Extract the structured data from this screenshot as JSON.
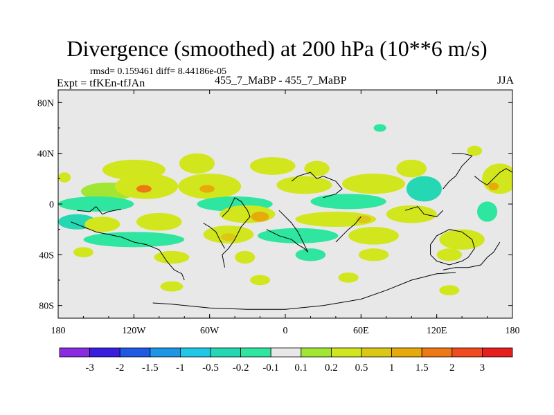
{
  "title": "Divergence (smoothed) at 200 hPa (10**6 m/s)",
  "stats_text": "rmsd= 0.159461 diff= 8.44186e-05",
  "expt_label": "Expt = tfKEn-tfJAn",
  "center_label": "455_7_MaBP - 455_7_MaBP",
  "season_label": "JJA",
  "chart_data": {
    "type": "heatmap",
    "title": "Divergence (smoothed) at 200 hPa (10**6 m/s)",
    "xlim": [
      -180,
      180
    ],
    "ylim": [
      -90,
      90
    ],
    "x_ticks": [
      {
        "value": -180,
        "label": "180"
      },
      {
        "value": -120,
        "label": "120W"
      },
      {
        "value": -60,
        "label": "60W"
      },
      {
        "value": 0,
        "label": "0"
      },
      {
        "value": 60,
        "label": "60E"
      },
      {
        "value": 120,
        "label": "120E"
      },
      {
        "value": 180,
        "label": "180"
      }
    ],
    "y_ticks": [
      {
        "value": 80,
        "label": "80N"
      },
      {
        "value": 40,
        "label": "40N"
      },
      {
        "value": 0,
        "label": "0"
      },
      {
        "value": -40,
        "label": "40S"
      },
      {
        "value": -80,
        "label": "80S"
      }
    ],
    "colorbar": {
      "colors": [
        "#8a2be2",
        "#3a1ee0",
        "#1e5ae6",
        "#1e96e6",
        "#1ec8e6",
        "#26d7b4",
        "#2ee6a0",
        "#e8e8e8",
        "#a0e632",
        "#d2e61e",
        "#dcc814",
        "#e6aa0a",
        "#ee7814",
        "#f04a1e",
        "#e61e1e"
      ],
      "labels": [
        "-3",
        "-2",
        "-1.5",
        "-1",
        "-0.5",
        "-0.2",
        "-0.1",
        "0.1",
        "0.2",
        "0.5",
        "1",
        "1.5",
        "2",
        "3"
      ]
    },
    "regions": [
      {
        "lon": -175,
        "lat": 21,
        "rx": 5,
        "ry": 4,
        "level": 9
      },
      {
        "lon": -168,
        "lat": 8,
        "rx": 10,
        "ry": 6,
        "level": 7
      },
      {
        "lon": -140,
        "lat": 10,
        "rx": 22,
        "ry": 7,
        "level": 8
      },
      {
        "lon": -110,
        "lat": 14,
        "rx": 25,
        "ry": 10,
        "level": 9
      },
      {
        "lon": -112,
        "lat": 12,
        "rx": 6,
        "ry": 3,
        "level": 12
      },
      {
        "lon": -60,
        "lat": 14,
        "rx": 25,
        "ry": 10,
        "level": 9
      },
      {
        "lon": -62,
        "lat": 12,
        "rx": 6,
        "ry": 3,
        "level": 11
      },
      {
        "lon": -120,
        "lat": 27,
        "rx": 25,
        "ry": 8,
        "level": 9
      },
      {
        "lon": -70,
        "lat": 32,
        "rx": 14,
        "ry": 8,
        "level": 9
      },
      {
        "lon": -10,
        "lat": 30,
        "rx": 18,
        "ry": 7,
        "level": 9
      },
      {
        "lon": 25,
        "lat": 28,
        "rx": 10,
        "ry": 6,
        "level": 9
      },
      {
        "lon": 15,
        "lat": 15,
        "rx": 22,
        "ry": 7,
        "level": 9
      },
      {
        "lon": 70,
        "lat": 16,
        "rx": 25,
        "ry": 8,
        "level": 9
      },
      {
        "lon": 100,
        "lat": 28,
        "rx": 12,
        "ry": 7,
        "level": 9
      },
      {
        "lon": 170,
        "lat": 20,
        "rx": 14,
        "ry": 12,
        "level": 9
      },
      {
        "lon": 165,
        "lat": 14,
        "rx": 4,
        "ry": 3,
        "level": 11
      },
      {
        "lon": -150,
        "lat": 0,
        "rx": 30,
        "ry": 6,
        "level": 6
      },
      {
        "lon": -40,
        "lat": 0,
        "rx": 30,
        "ry": 6,
        "level": 6
      },
      {
        "lon": 50,
        "lat": 2,
        "rx": 30,
        "ry": 6,
        "level": 6
      },
      {
        "lon": 110,
        "lat": 12,
        "rx": 14,
        "ry": 10,
        "level": 5
      },
      {
        "lon": -165,
        "lat": -14,
        "rx": 15,
        "ry": 6,
        "level": 5
      },
      {
        "lon": -145,
        "lat": -16,
        "rx": 14,
        "ry": 6,
        "level": 9
      },
      {
        "lon": -100,
        "lat": -14,
        "rx": 18,
        "ry": 7,
        "level": 9
      },
      {
        "lon": -30,
        "lat": -8,
        "rx": 22,
        "ry": 7,
        "level": 9
      },
      {
        "lon": -20,
        "lat": -10,
        "rx": 7,
        "ry": 4,
        "level": 11
      },
      {
        "lon": 40,
        "lat": -12,
        "rx": 32,
        "ry": 6,
        "level": 9
      },
      {
        "lon": 62,
        "lat": -12,
        "rx": 6,
        "ry": 3,
        "level": 10
      },
      {
        "lon": 100,
        "lat": -8,
        "rx": 20,
        "ry": 7,
        "level": 9
      },
      {
        "lon": -120,
        "lat": -28,
        "rx": 40,
        "ry": 6,
        "level": 6
      },
      {
        "lon": -45,
        "lat": -24,
        "rx": 20,
        "ry": 7,
        "level": 9
      },
      {
        "lon": -45,
        "lat": -26,
        "rx": 6,
        "ry": 3,
        "level": 10
      },
      {
        "lon": 10,
        "lat": -25,
        "rx": 32,
        "ry": 6,
        "level": 6
      },
      {
        "lon": 70,
        "lat": -25,
        "rx": 20,
        "ry": 7,
        "level": 9
      },
      {
        "lon": 140,
        "lat": -28,
        "rx": 18,
        "ry": 8,
        "level": 9
      },
      {
        "lon": 160,
        "lat": -6,
        "rx": 8,
        "ry": 8,
        "level": 6
      },
      {
        "lon": -160,
        "lat": -38,
        "rx": 8,
        "ry": 4,
        "level": 9
      },
      {
        "lon": -90,
        "lat": -42,
        "rx": 14,
        "ry": 5,
        "level": 9
      },
      {
        "lon": -32,
        "lat": -42,
        "rx": 8,
        "ry": 5,
        "level": 9
      },
      {
        "lon": 20,
        "lat": -40,
        "rx": 12,
        "ry": 5,
        "level": 6
      },
      {
        "lon": 70,
        "lat": -40,
        "rx": 12,
        "ry": 5,
        "level": 9
      },
      {
        "lon": 130,
        "lat": -40,
        "rx": 10,
        "ry": 5,
        "level": 9
      },
      {
        "lon": -90,
        "lat": -65,
        "rx": 9,
        "ry": 4,
        "level": 9
      },
      {
        "lon": -20,
        "lat": -60,
        "rx": 8,
        "ry": 4,
        "level": 9
      },
      {
        "lon": 50,
        "lat": -58,
        "rx": 8,
        "ry": 4,
        "level": 9
      },
      {
        "lon": 130,
        "lat": -68,
        "rx": 8,
        "ry": 4,
        "level": 9
      },
      {
        "lon": 75,
        "lat": 60,
        "rx": 5,
        "ry": 3,
        "level": 6
      },
      {
        "lon": 150,
        "lat": 42,
        "rx": 6,
        "ry": 4,
        "level": 9
      }
    ],
    "coastlines": [
      [
        [
          -165,
          -5
        ],
        [
          -155,
          -6
        ],
        [
          -150,
          -2
        ],
        [
          -145,
          -8
        ],
        [
          -140,
          -6
        ],
        [
          -130,
          -4
        ]
      ],
      [
        [
          -170,
          -14
        ],
        [
          -160,
          -18
        ],
        [
          -150,
          -22
        ],
        [
          -140,
          -24
        ],
        [
          -130,
          -26
        ],
        [
          -120,
          -30
        ],
        [
          -110,
          -32
        ],
        [
          -100,
          -36
        ],
        [
          -94,
          -45
        ],
        [
          -88,
          -52
        ],
        [
          -82,
          -55
        ],
        [
          -80,
          -60
        ]
      ],
      [
        [
          -50,
          -10
        ],
        [
          -45,
          -5
        ],
        [
          -40,
          5
        ],
        [
          -35,
          2
        ],
        [
          -30,
          -5
        ],
        [
          -28,
          -10
        ],
        [
          -35,
          -18
        ],
        [
          -40,
          -28
        ],
        [
          -45,
          -35
        ],
        [
          -50,
          -40
        ],
        [
          -48,
          -50
        ]
      ],
      [
        [
          -65,
          -15
        ],
        [
          -60,
          -18
        ],
        [
          -55,
          -22
        ],
        [
          -52,
          -28
        ],
        [
          -48,
          -35
        ]
      ],
      [
        [
          -15,
          -20
        ],
        [
          -5,
          -25
        ],
        [
          5,
          -28
        ],
        [
          10,
          -32
        ],
        [
          15,
          -35
        ],
        [
          18,
          -38
        ],
        [
          15,
          -32
        ],
        [
          10,
          -22
        ],
        [
          5,
          -15
        ],
        [
          0,
          -10
        ],
        [
          -5,
          -5
        ]
      ],
      [
        [
          5,
          18
        ],
        [
          10,
          22
        ],
        [
          20,
          25
        ],
        [
          25,
          20
        ],
        [
          30,
          22
        ],
        [
          40,
          18
        ],
        [
          45,
          12
        ],
        [
          40,
          8
        ],
        [
          30,
          5
        ]
      ],
      [
        [
          60,
          -10
        ],
        [
          55,
          -16
        ],
        [
          50,
          -20
        ],
        [
          45,
          -25
        ],
        [
          40,
          -30
        ]
      ],
      [
        [
          95,
          -5
        ],
        [
          105,
          -2
        ],
        [
          110,
          -8
        ],
        [
          120,
          -10
        ],
        [
          125,
          -5
        ]
      ],
      [
        [
          115,
          -40
        ],
        [
          120,
          -45
        ],
        [
          130,
          -48
        ],
        [
          140,
          -45
        ],
        [
          145,
          -42
        ],
        [
          150,
          -35
        ],
        [
          148,
          -28
        ],
        [
          140,
          -22
        ],
        [
          130,
          -20
        ],
        [
          120,
          -25
        ],
        [
          115,
          -32
        ],
        [
          115,
          -40
        ]
      ],
      [
        [
          125,
          12
        ],
        [
          130,
          18
        ],
        [
          135,
          22
        ],
        [
          140,
          30
        ],
        [
          145,
          35
        ],
        [
          148,
          38
        ],
        [
          140,
          40
        ],
        [
          132,
          40
        ]
      ],
      [
        [
          150,
          22
        ],
        [
          155,
          18
        ],
        [
          160,
          15
        ],
        [
          165,
          20
        ],
        [
          170,
          25
        ],
        [
          175,
          28
        ],
        [
          180,
          25
        ]
      ],
      [
        [
          125,
          -52
        ],
        [
          135,
          -50
        ],
        [
          145,
          -50
        ],
        [
          155,
          -48
        ],
        [
          160,
          -42
        ],
        [
          165,
          -38
        ],
        [
          170,
          -30
        ]
      ],
      [
        [
          -105,
          -78
        ],
        [
          -90,
          -79
        ],
        [
          -60,
          -82
        ],
        [
          -30,
          -83
        ],
        [
          0,
          -83
        ],
        [
          30,
          -80
        ],
        [
          60,
          -75
        ],
        [
          80,
          -68
        ],
        [
          100,
          -60
        ],
        [
          120,
          -55
        ],
        [
          135,
          -54
        ]
      ]
    ]
  }
}
